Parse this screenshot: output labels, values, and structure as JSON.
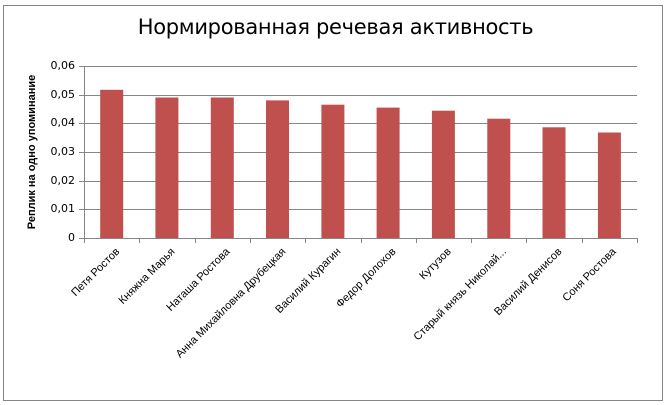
{
  "chart_data": {
    "type": "bar",
    "title": "Нормированная речевая активность",
    "xlabel": "",
    "ylabel": "Реплик на одно упоминание",
    "categories": [
      "Петя Ростов",
      "Княжна Марья",
      "Наташа Ростова",
      "Анна Михайловна Друбецкая",
      "Василий Курагин",
      "Федор Долохов",
      "Кутузов",
      "Старый князь Николай...",
      "Василий Денисов",
      "Соня Ростова"
    ],
    "values": [
      0.0517,
      0.049,
      0.049,
      0.048,
      0.0465,
      0.0455,
      0.0444,
      0.0416,
      0.0386,
      0.0368
    ],
    "ylim": [
      0,
      0.06
    ],
    "yticks": [
      "0",
      "0,01",
      "0,02",
      "0,03",
      "0,04",
      "0,05",
      "0,06"
    ],
    "grid": true,
    "legend": "none",
    "bar_color": "#c0504d",
    "gridline_color": "#868686"
  }
}
